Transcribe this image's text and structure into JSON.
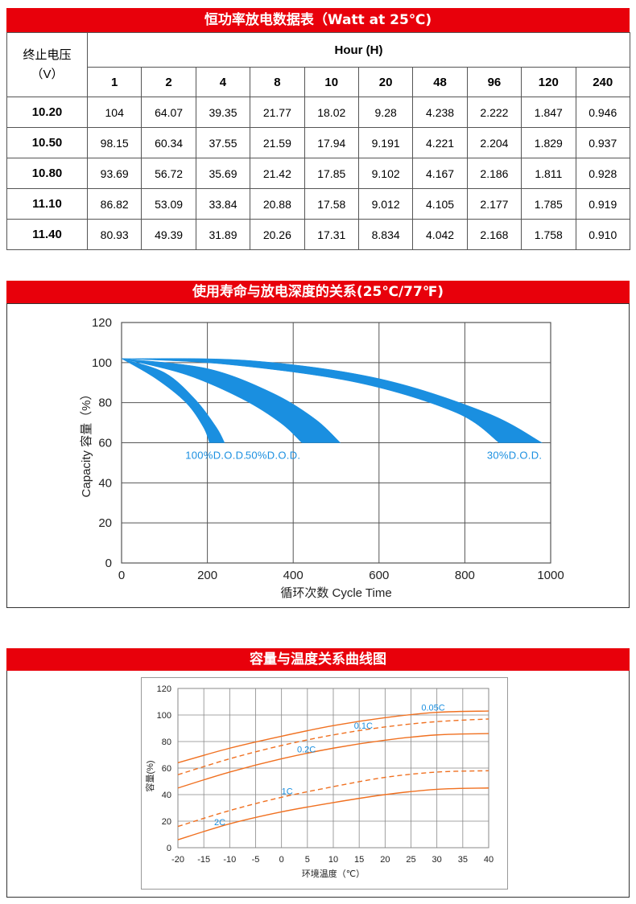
{
  "table": {
    "title": "恒功率放电数据表（Watt at 25℃)",
    "corner_line1": "终止电压",
    "corner_line2": "（V）",
    "hour_header": "Hour (H)",
    "hours": [
      "1",
      "2",
      "4",
      "8",
      "10",
      "20",
      "48",
      "96",
      "120",
      "240"
    ],
    "rows": [
      {
        "voltage": "10.20",
        "values": [
          "104",
          "64.07",
          "39.35",
          "21.77",
          "18.02",
          "9.28",
          "4.238",
          "2.222",
          "1.847",
          "0.946"
        ]
      },
      {
        "voltage": "10.50",
        "values": [
          "98.15",
          "60.34",
          "37.55",
          "21.59",
          "17.94",
          "9.191",
          "4.221",
          "2.204",
          "1.829",
          "0.937"
        ]
      },
      {
        "voltage": "10.80",
        "values": [
          "93.69",
          "56.72",
          "35.69",
          "21.42",
          "17.85",
          "9.102",
          "4.167",
          "2.186",
          "1.811",
          "0.928"
        ]
      },
      {
        "voltage": "11.10",
        "values": [
          "86.82",
          "53.09",
          "33.84",
          "20.88",
          "17.58",
          "9.012",
          "4.105",
          "2.177",
          "1.785",
          "0.919"
        ]
      },
      {
        "voltage": "11.40",
        "values": [
          "80.93",
          "49.39",
          "31.89",
          "20.26",
          "17.31",
          "8.834",
          "4.042",
          "2.168",
          "1.758",
          "0.910"
        ]
      }
    ]
  },
  "chart1": {
    "title": "使用寿命与放电深度的关系(25℃/77℉)",
    "colors": {
      "band": "#1a8fe0",
      "grid": "#555555",
      "label": "#1a8fe0"
    }
  },
  "chart2": {
    "title": "容量与温度关系曲线图",
    "colors": {
      "curve": "#f07020",
      "grid": "#888888",
      "label": "#1a8fe0"
    }
  },
  "chart_data": [
    {
      "type": "area",
      "title": "",
      "xlabel": "循环次数 Cycle Time",
      "ylabel": "Capacity 容量（%）",
      "xlim": [
        0,
        1000
      ],
      "ylim": [
        0,
        120
      ],
      "x_ticks": [
        "0",
        "200",
        "400",
        "600",
        "800",
        "1000"
      ],
      "y_ticks": [
        "0",
        "20",
        "40",
        "60",
        "80",
        "100",
        "120"
      ],
      "grid": true,
      "series": [
        {
          "name": "100%D.O.D.",
          "upper": [
            [
              0,
              102
            ],
            [
              100,
              95
            ],
            [
              170,
              82
            ],
            [
              220,
              68
            ],
            [
              240,
              60
            ]
          ],
          "lower": [
            [
              0,
              102
            ],
            [
              80,
              92
            ],
            [
              150,
              80
            ],
            [
              190,
              68
            ],
            [
              205,
              60
            ]
          ]
        },
        {
          "name": "50%D.O.D.",
          "upper": [
            [
              0,
              102
            ],
            [
              200,
              97
            ],
            [
              350,
              85
            ],
            [
              450,
              72
            ],
            [
              510,
              60
            ]
          ],
          "lower": [
            [
              0,
              102
            ],
            [
              150,
              94
            ],
            [
              280,
              82
            ],
            [
              370,
              70
            ],
            [
              420,
              60
            ]
          ]
        },
        {
          "name": "30%D.O.D.",
          "upper": [
            [
              0,
              102
            ],
            [
              300,
              101
            ],
            [
              600,
              92
            ],
            [
              850,
              75
            ],
            [
              980,
              60
            ]
          ],
          "lower": [
            [
              0,
              102
            ],
            [
              250,
              99
            ],
            [
              550,
              90
            ],
            [
              780,
              75
            ],
            [
              880,
              60
            ]
          ]
        }
      ]
    },
    {
      "type": "line",
      "title": "",
      "xlabel": "环境温度（℃）",
      "ylabel": "容量(%)",
      "xlim": [
        -20,
        40
      ],
      "ylim": [
        0,
        120
      ],
      "x_ticks": [
        "-20",
        "-15",
        "-10",
        "-5",
        "0",
        "5",
        "10",
        "15",
        "20",
        "25",
        "30",
        "35",
        "40"
      ],
      "y_ticks": [
        "0",
        "20",
        "40",
        "60",
        "80",
        "100",
        "120"
      ],
      "grid": true,
      "series": [
        {
          "name": "0.05C",
          "dashed": false,
          "x": [
            -20,
            -10,
            0,
            10,
            20,
            30,
            40
          ],
          "y": [
            64,
            75,
            84,
            92,
            98,
            102,
            103
          ]
        },
        {
          "name": "0.1C",
          "dashed": true,
          "x": [
            -20,
            -10,
            0,
            10,
            20,
            30,
            40
          ],
          "y": [
            55,
            67,
            77,
            85,
            91,
            95,
            97
          ]
        },
        {
          "name": "0.2C",
          "dashed": false,
          "x": [
            -20,
            -10,
            0,
            10,
            20,
            30,
            40
          ],
          "y": [
            45,
            57,
            67,
            75,
            81,
            85,
            86
          ]
        },
        {
          "name": "1C",
          "dashed": true,
          "x": [
            -20,
            -10,
            0,
            10,
            20,
            30,
            40
          ],
          "y": [
            16,
            28,
            38,
            46,
            53,
            57,
            58
          ]
        },
        {
          "name": "2C",
          "dashed": false,
          "x": [
            -20,
            -10,
            0,
            10,
            20,
            30,
            40
          ],
          "y": [
            6,
            18,
            27,
            34,
            40,
            44,
            45
          ]
        }
      ]
    }
  ]
}
